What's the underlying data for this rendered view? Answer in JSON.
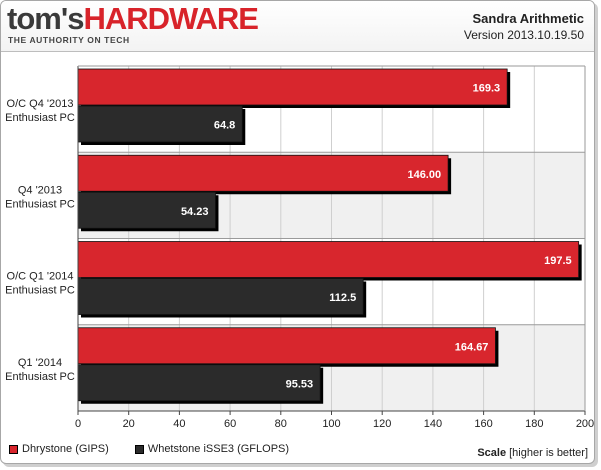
{
  "header": {
    "logo_part1": "tom's",
    "logo_part2": "HARDWARE",
    "tagline": "THE AUTHORITY ON TECH",
    "chart_title": "Sandra Arithmetic",
    "chart_version": "Version 2013.10.19.50"
  },
  "legend": {
    "scale_label": "Scale",
    "scale_hint": "[higher is better]"
  },
  "colors": {
    "dhrystone": "#d8262d",
    "whetstone": "#2b2b2b",
    "band_even": "#ffffff",
    "band_odd": "#f0f0f0",
    "grid": "#cfcfcf"
  },
  "chart_data": {
    "type": "bar",
    "orientation": "horizontal",
    "title": "Sandra Arithmetic",
    "subtitle": "Version 2013.10.19.50",
    "categories": [
      [
        "O/C Q4 '2013",
        "Enthusiast PC"
      ],
      [
        "Q4 '2013",
        "Enthusiast PC"
      ],
      [
        "O/C Q1 '2014",
        "Enthusiast PC"
      ],
      [
        "Q1 '2014",
        "Enthusiast PC"
      ]
    ],
    "series": [
      {
        "name": "Dhrystone (GIPS)",
        "values": [
          169.3,
          146.0,
          197.5,
          164.67
        ],
        "labels": [
          "169.3",
          "146.00",
          "197.5",
          "164.67"
        ]
      },
      {
        "name": "Whetstone iSSE3 (GFLOPS)",
        "values": [
          64.8,
          54.23,
          112.5,
          95.53
        ],
        "labels": [
          "64.8",
          "54.23",
          "112.5",
          "95.53"
        ]
      }
    ],
    "xlim": [
      0,
      200
    ],
    "xticks": [
      0,
      20,
      40,
      60,
      80,
      100,
      120,
      140,
      160,
      180,
      200
    ],
    "grid": true,
    "legend_position": "bottom-left"
  }
}
